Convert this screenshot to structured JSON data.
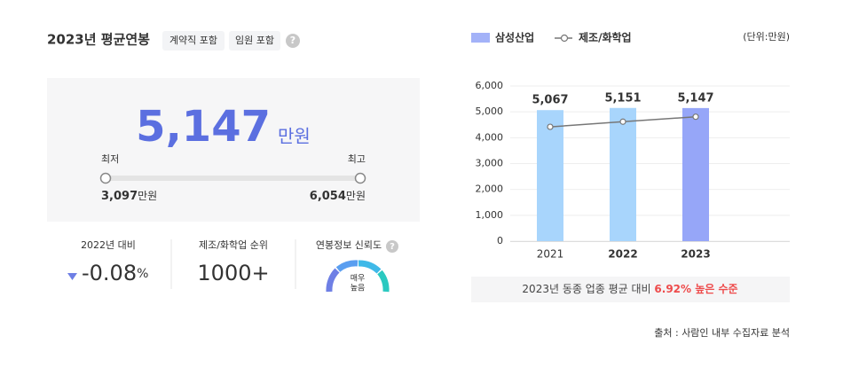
{
  "header": {
    "title": "2023년 평균연봉",
    "tags": [
      "계약직 포함",
      "임원 포함"
    ],
    "help": "?"
  },
  "summary": {
    "value": "5,147",
    "unit": "만원",
    "min_label": "최저",
    "max_label": "최고",
    "min_value": "3,097",
    "min_unit": "만원",
    "max_value": "6,054",
    "max_unit": "만원"
  },
  "stats": {
    "change_label": "2022년 대비",
    "change_value": "-0.08",
    "change_unit": "%",
    "rank_label": "제조/화학업 순위",
    "rank_value": "1000+",
    "trust_label": "연봉정보 신뢰도",
    "trust_help": "?",
    "trust_level": [
      "매우",
      "높음"
    ]
  },
  "chart_data": {
    "type": "bar",
    "unit": "(단위:만원)",
    "categories": [
      "2021",
      "2022",
      "2023"
    ],
    "series": [
      {
        "name": "삼성산업",
        "color": "#a3b2f8",
        "colors": [
          "#a8d5fc",
          "#a8d5fc",
          "#96a6f8"
        ],
        "values": [
          5067,
          5151,
          5147
        ],
        "value_labels": [
          "5,067",
          "5,151",
          "5,147"
        ]
      },
      {
        "name": "제조/화학업",
        "type": "line",
        "color": "#777777",
        "values": [
          4420,
          4620,
          4810
        ]
      }
    ],
    "ylim": [
      0,
      6000
    ],
    "yticks": [
      0,
      {
        "value": 1000,
        "label": "1,000"
      },
      {
        "value": 2000,
        "label": "2,000"
      },
      {
        "value": 3000,
        "label": "3,000"
      },
      {
        "value": 4000,
        "label": "4,000"
      },
      {
        "value": 5000,
        "label": "5,000"
      },
      {
        "value": 6000,
        "label": "6,000"
      }
    ],
    "grid": true,
    "note": {
      "prefix": "2023년 동종 업종 평균 대비",
      "highlight": "6.92% 높은 수준"
    }
  },
  "footer": {
    "source": "출처 : 사람인 내부 수집자료 분석"
  }
}
